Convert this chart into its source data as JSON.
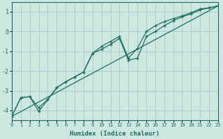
{
  "xlabel": "Humidex (Indice chaleur)",
  "background_color": "#cce8e0",
  "grid_color": "#aacfc8",
  "line_color": "#1e6e5e",
  "x_ticks": [
    0,
    1,
    2,
    3,
    4,
    5,
    6,
    7,
    8,
    9,
    10,
    11,
    12,
    13,
    14,
    15,
    16,
    17,
    18,
    19,
    20,
    21,
    22,
    23
  ],
  "y_ticks": [
    -4,
    -3,
    -2,
    -1,
    0,
    1
  ],
  "xlim": [
    0,
    23
  ],
  "ylim": [
    -4.5,
    1.5
  ],
  "line1_x": [
    0,
    1,
    2,
    3,
    4,
    5,
    6,
    7,
    8,
    9,
    10,
    11,
    12,
    13,
    14,
    15,
    16,
    17,
    18,
    19,
    20,
    21,
    22,
    23
  ],
  "line1_y": [
    -4.3,
    -3.35,
    -3.3,
    -3.85,
    -3.45,
    -2.85,
    -2.55,
    -2.3,
    -2.05,
    -1.1,
    -0.75,
    -0.5,
    -0.25,
    -1.35,
    -0.85,
    0.0,
    0.3,
    0.5,
    0.65,
    0.8,
    0.95,
    1.15,
    1.2,
    1.3
  ],
  "line2_x": [
    0,
    1,
    2,
    3,
    4,
    5,
    6,
    7,
    8,
    9,
    10,
    11,
    12,
    13,
    14,
    15,
    16,
    17,
    18,
    19,
    20,
    21,
    22,
    23
  ],
  "line2_y": [
    -4.3,
    -3.35,
    -3.3,
    -4.05,
    -3.45,
    -2.85,
    -2.55,
    -2.3,
    -2.05,
    -1.1,
    -0.9,
    -0.65,
    -0.35,
    -1.45,
    -1.35,
    -0.25,
    -0.0,
    0.3,
    0.55,
    0.75,
    0.9,
    1.1,
    1.2,
    1.3
  ],
  "line3_x": [
    0,
    23
  ],
  "line3_y": [
    -4.3,
    1.3
  ]
}
